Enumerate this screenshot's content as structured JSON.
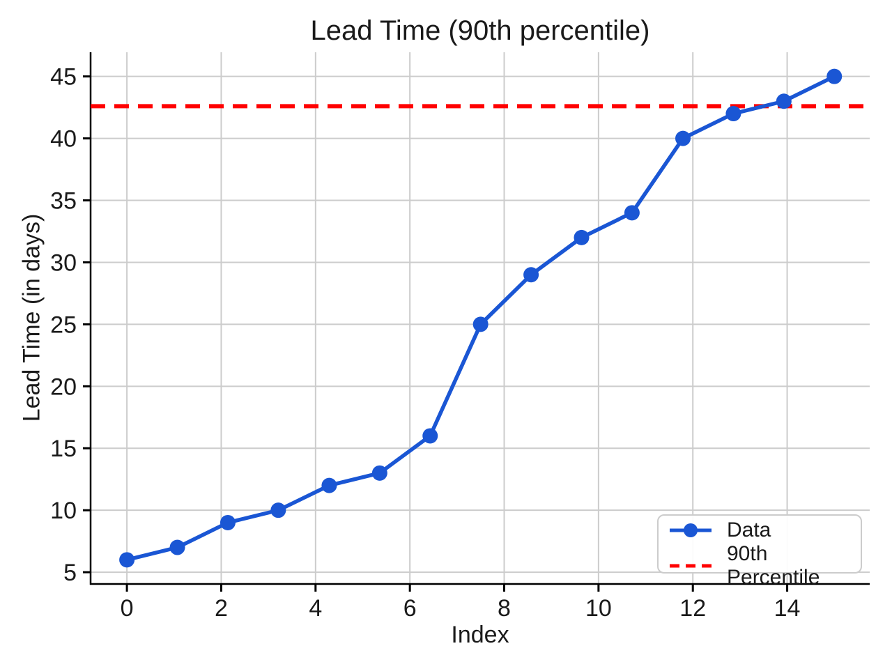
{
  "chart_data": {
    "type": "line",
    "title": "Lead Time (90th percentile)",
    "xlabel": "Index",
    "ylabel": "Lead Time (in days)",
    "x": [
      0,
      1.07,
      2.14,
      3.21,
      4.29,
      5.36,
      6.43,
      7.5,
      8.57,
      9.64,
      10.71,
      11.79,
      12.86,
      13.93,
      15
    ],
    "series": [
      {
        "name": "Data",
        "type": "line",
        "marker": "circle",
        "color": "#1a56d4",
        "values": [
          6,
          7,
          9,
          10,
          12,
          13,
          16,
          25,
          29,
          32,
          34,
          40,
          42,
          43,
          45
        ]
      },
      {
        "name": "90th Percentile",
        "type": "hline",
        "style": "dashed",
        "color": "#ff0000",
        "value": 42.6
      }
    ],
    "xticks": [
      0,
      2,
      4,
      6,
      8,
      10,
      12,
      14
    ],
    "yticks": [
      5,
      10,
      15,
      20,
      25,
      30,
      35,
      40,
      45
    ],
    "xlim": [
      -0.77,
      15.75
    ],
    "ylim": [
      4.05,
      46.95
    ],
    "grid": true,
    "legend_position": "lower right",
    "colors": {
      "grid": "#cccccc",
      "axis": "#000000",
      "text": "#1a1a1a",
      "background": "#ffffff"
    }
  }
}
